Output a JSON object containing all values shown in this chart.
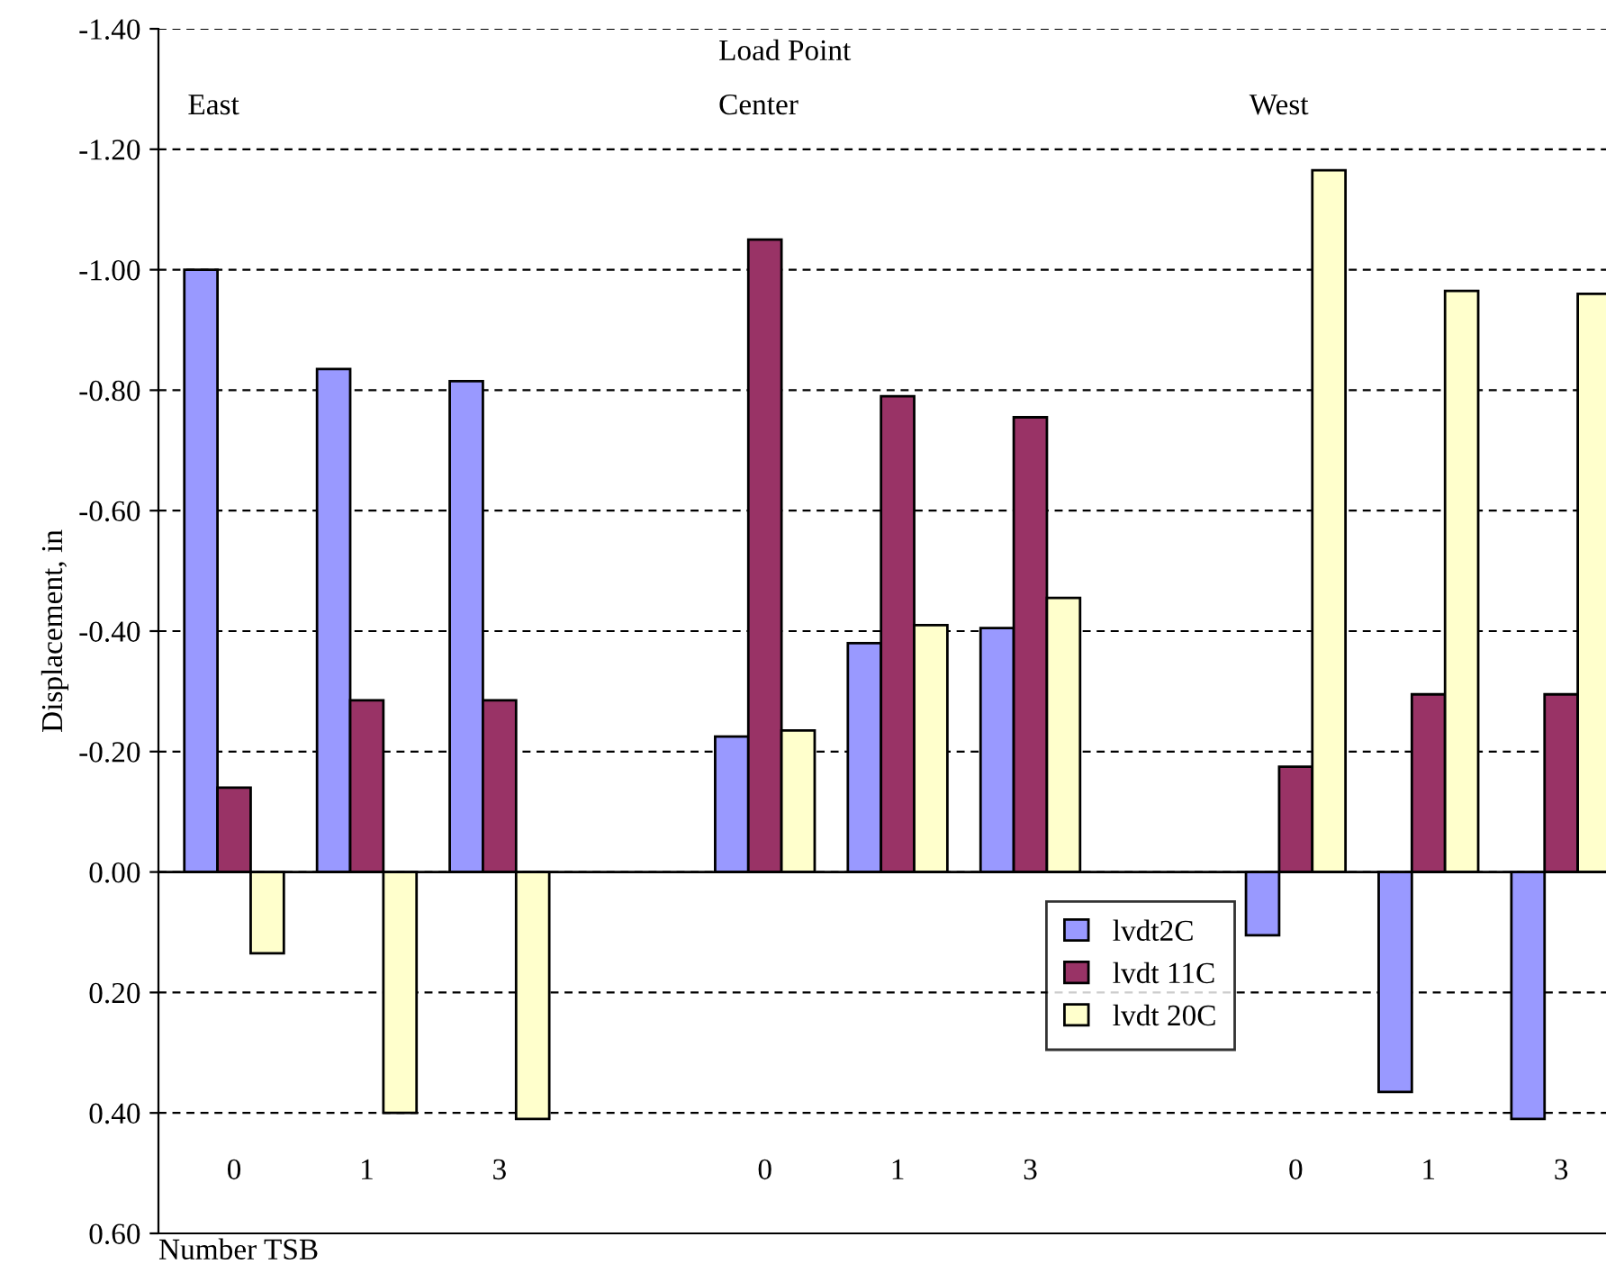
{
  "chart_data": {
    "type": "bar",
    "xlabel": "Number TSB",
    "ylabel": "Displacement, in",
    "categories": [
      "0",
      "1",
      "3",
      null,
      "0",
      "1",
      "3",
      null,
      "0",
      "1",
      "3"
    ],
    "series": [
      {
        "name": "lvdt2C",
        "color": "#9999ff",
        "values": [
          -1.0,
          -0.835,
          -0.815,
          null,
          -0.225,
          -0.38,
          -0.405,
          null,
          0.105,
          0.365,
          0.41
        ]
      },
      {
        "name": "lvdt 11C",
        "color": "#993366",
        "values": [
          -0.14,
          -0.285,
          -0.285,
          null,
          -1.05,
          -0.79,
          -0.755,
          null,
          -0.175,
          -0.295,
          -0.295
        ]
      },
      {
        "name": "lvdt 20C",
        "color": "#ffffcc",
        "values": [
          0.135,
          0.4,
          0.41,
          null,
          -0.235,
          -0.41,
          -0.455,
          null,
          -1.165,
          -0.965,
          -0.96
        ]
      }
    ],
    "ylim": [
      0.6,
      -1.4
    ],
    "yticks": [
      {
        "value": -1.4,
        "label": "-1.40"
      },
      {
        "value": -1.2,
        "label": "-1.20"
      },
      {
        "value": -1.0,
        "label": "-1.00"
      },
      {
        "value": -0.8,
        "label": "-0.80"
      },
      {
        "value": -0.6,
        "label": "-0.60"
      },
      {
        "value": -0.4,
        "label": "-0.40"
      },
      {
        "value": -0.2,
        "label": "-0.20"
      },
      {
        "value": 0,
        "label": "0.00"
      },
      {
        "value": 0.2,
        "label": "0.20"
      },
      {
        "value": 0.4,
        "label": "0.40"
      },
      {
        "value": 0.6,
        "label": "0.60"
      }
    ],
    "grid": "y",
    "legend": "bottom",
    "annotations": [
      "Load Point",
      "East",
      "Center",
      "West"
    ]
  }
}
